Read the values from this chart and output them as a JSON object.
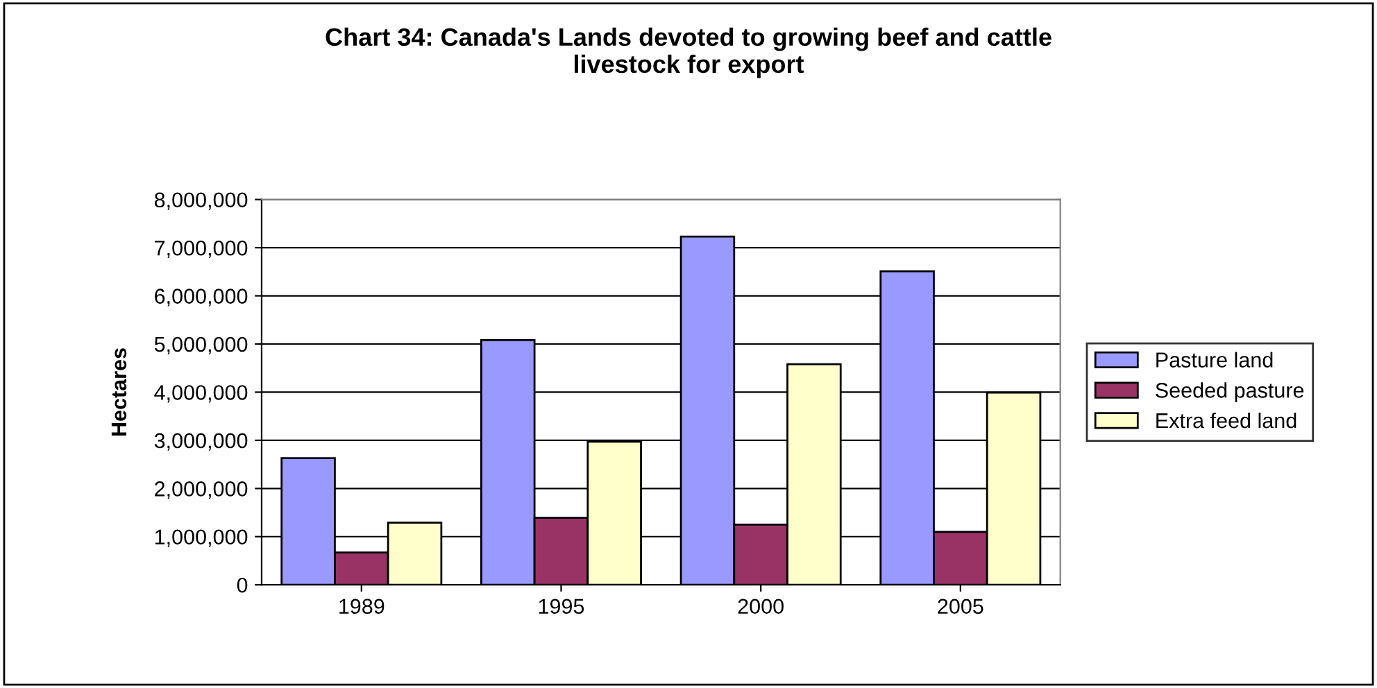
{
  "chart_data": {
    "type": "bar",
    "title": "Chart 34: Canada's Lands devoted to growing beef and cattle\nlivestock for export",
    "ylabel": "Hectares",
    "categories": [
      "1989",
      "1995",
      "2000",
      "2005"
    ],
    "series": [
      {
        "name": "Pasture land",
        "color": "#9999ff",
        "values": [
          2630000,
          5080000,
          7230000,
          6510000
        ]
      },
      {
        "name": "Seeded pasture",
        "color": "#993366",
        "values": [
          670000,
          1390000,
          1250000,
          1100000
        ]
      },
      {
        "name": "Extra feed land",
        "color": "#ffffcc",
        "values": [
          1290000,
          2970000,
          4580000,
          3990000
        ]
      }
    ],
    "ylim": [
      0,
      8000000
    ],
    "yticks": [
      {
        "value": 0,
        "label": "0"
      },
      {
        "value": 1000000,
        "label": "1,000,000"
      },
      {
        "value": 2000000,
        "label": "2,000,000"
      },
      {
        "value": 3000000,
        "label": "3,000,000"
      },
      {
        "value": 4000000,
        "label": "4,000,000"
      },
      {
        "value": 5000000,
        "label": "5,000,000"
      },
      {
        "value": 6000000,
        "label": "6,000,000"
      },
      {
        "value": 7000000,
        "label": "7,000,000"
      },
      {
        "value": 8000000,
        "label": "8,000,000"
      }
    ],
    "grid": "y",
    "legend": "right"
  }
}
